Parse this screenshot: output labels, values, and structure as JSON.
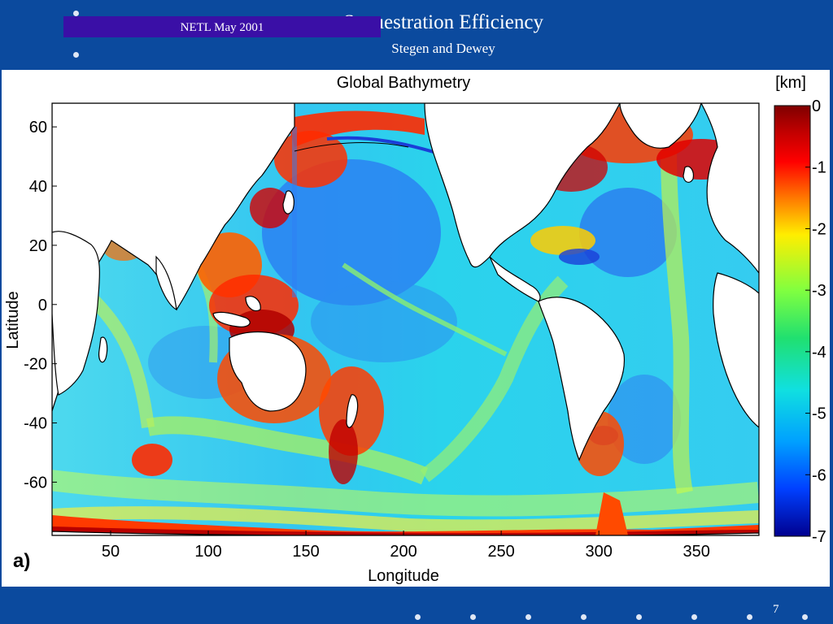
{
  "slide": {
    "title": "Sequestration Efficiency",
    "subtitle": "Stegen and Dewey",
    "footer": "NETL May 2001",
    "page_number": "7",
    "panel_label": "a)"
  },
  "colors": {
    "slide_background": "#0b4a9e",
    "footer_box": "#3a0fa6",
    "land": "#ffffff",
    "coast": "#000000"
  },
  "colorbar": {
    "unit": "[km]",
    "ticks": [
      "0",
      "-1",
      "-2",
      "-3",
      "-4",
      "-5",
      "-6",
      "-7"
    ],
    "colormap": "jet",
    "range_km": [
      -7,
      0
    ]
  },
  "chart_data": {
    "type": "heatmap",
    "title": "Global Bathymetry",
    "xlabel": "Longitude",
    "ylabel": "Latitude",
    "x_ticks": [
      "50",
      "100",
      "150",
      "200",
      "250",
      "300",
      "350"
    ],
    "y_ticks": [
      "60",
      "40",
      "20",
      "0",
      "-20",
      "-40",
      "-60"
    ],
    "xlim": [
      20,
      382
    ],
    "ylim": [
      -78,
      68
    ],
    "variable": "ocean depth",
    "units": "km",
    "value_range": [
      -7,
      0
    ],
    "colormap": "jet",
    "grid": false
  }
}
